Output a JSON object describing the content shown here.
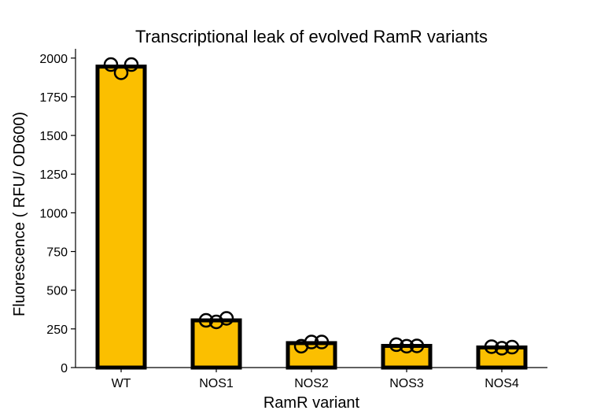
{
  "chart_data": {
    "type": "bar",
    "title": "Transcriptional leak of evolved RamR variants",
    "xlabel": "RamR variant",
    "ylabel": "Fluorescence ( RFU/ OD600)",
    "categories": [
      "WT",
      "NOS1",
      "NOS2",
      "NOS3",
      "NOS4"
    ],
    "values": [
      1945,
      305,
      158,
      140,
      130
    ],
    "replicates": [
      [
        1958,
        1905,
        1958
      ],
      [
        305,
        295,
        318
      ],
      [
        138,
        165,
        165
      ],
      [
        148,
        138,
        140
      ],
      [
        135,
        125,
        132
      ]
    ],
    "ylim": [
      0,
      2060
    ],
    "yticks": [
      0,
      250,
      500,
      750,
      1000,
      1250,
      1500,
      1750,
      2000
    ],
    "grid": false,
    "colors": {
      "bar_fill": "#FBBF00",
      "bar_edge": "#000000",
      "marker_edge": "#000000"
    }
  }
}
